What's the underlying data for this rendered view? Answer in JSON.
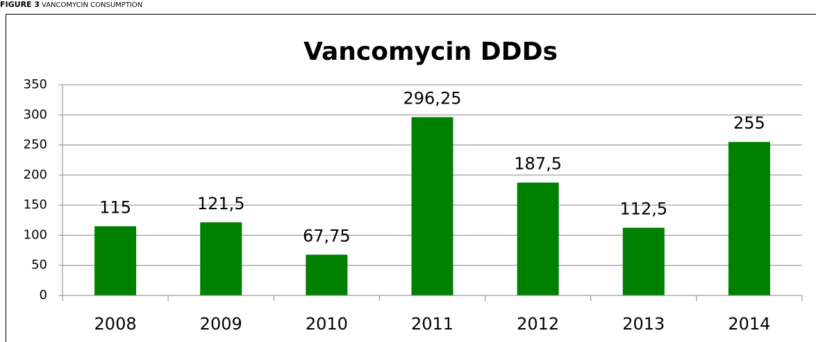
{
  "caption": {
    "label": "FIGURE 3",
    "text": "VANCOMYCIN CONSUMPTION"
  },
  "chart_data": {
    "type": "bar",
    "title": "Vancomycin DDDs",
    "categories": [
      "2008",
      "2009",
      "2010",
      "2011",
      "2012",
      "2013",
      "2014"
    ],
    "values": [
      115,
      121.5,
      67.75,
      296.25,
      187.5,
      112.5,
      255
    ],
    "value_labels": [
      "115",
      "121,5",
      "67,75",
      "296,25",
      "187,5",
      "112,5",
      "255"
    ],
    "color": "#008000",
    "ylim": [
      0,
      350
    ],
    "yticks": [
      0,
      50,
      100,
      150,
      200,
      250,
      300,
      350
    ],
    "grid": true
  }
}
